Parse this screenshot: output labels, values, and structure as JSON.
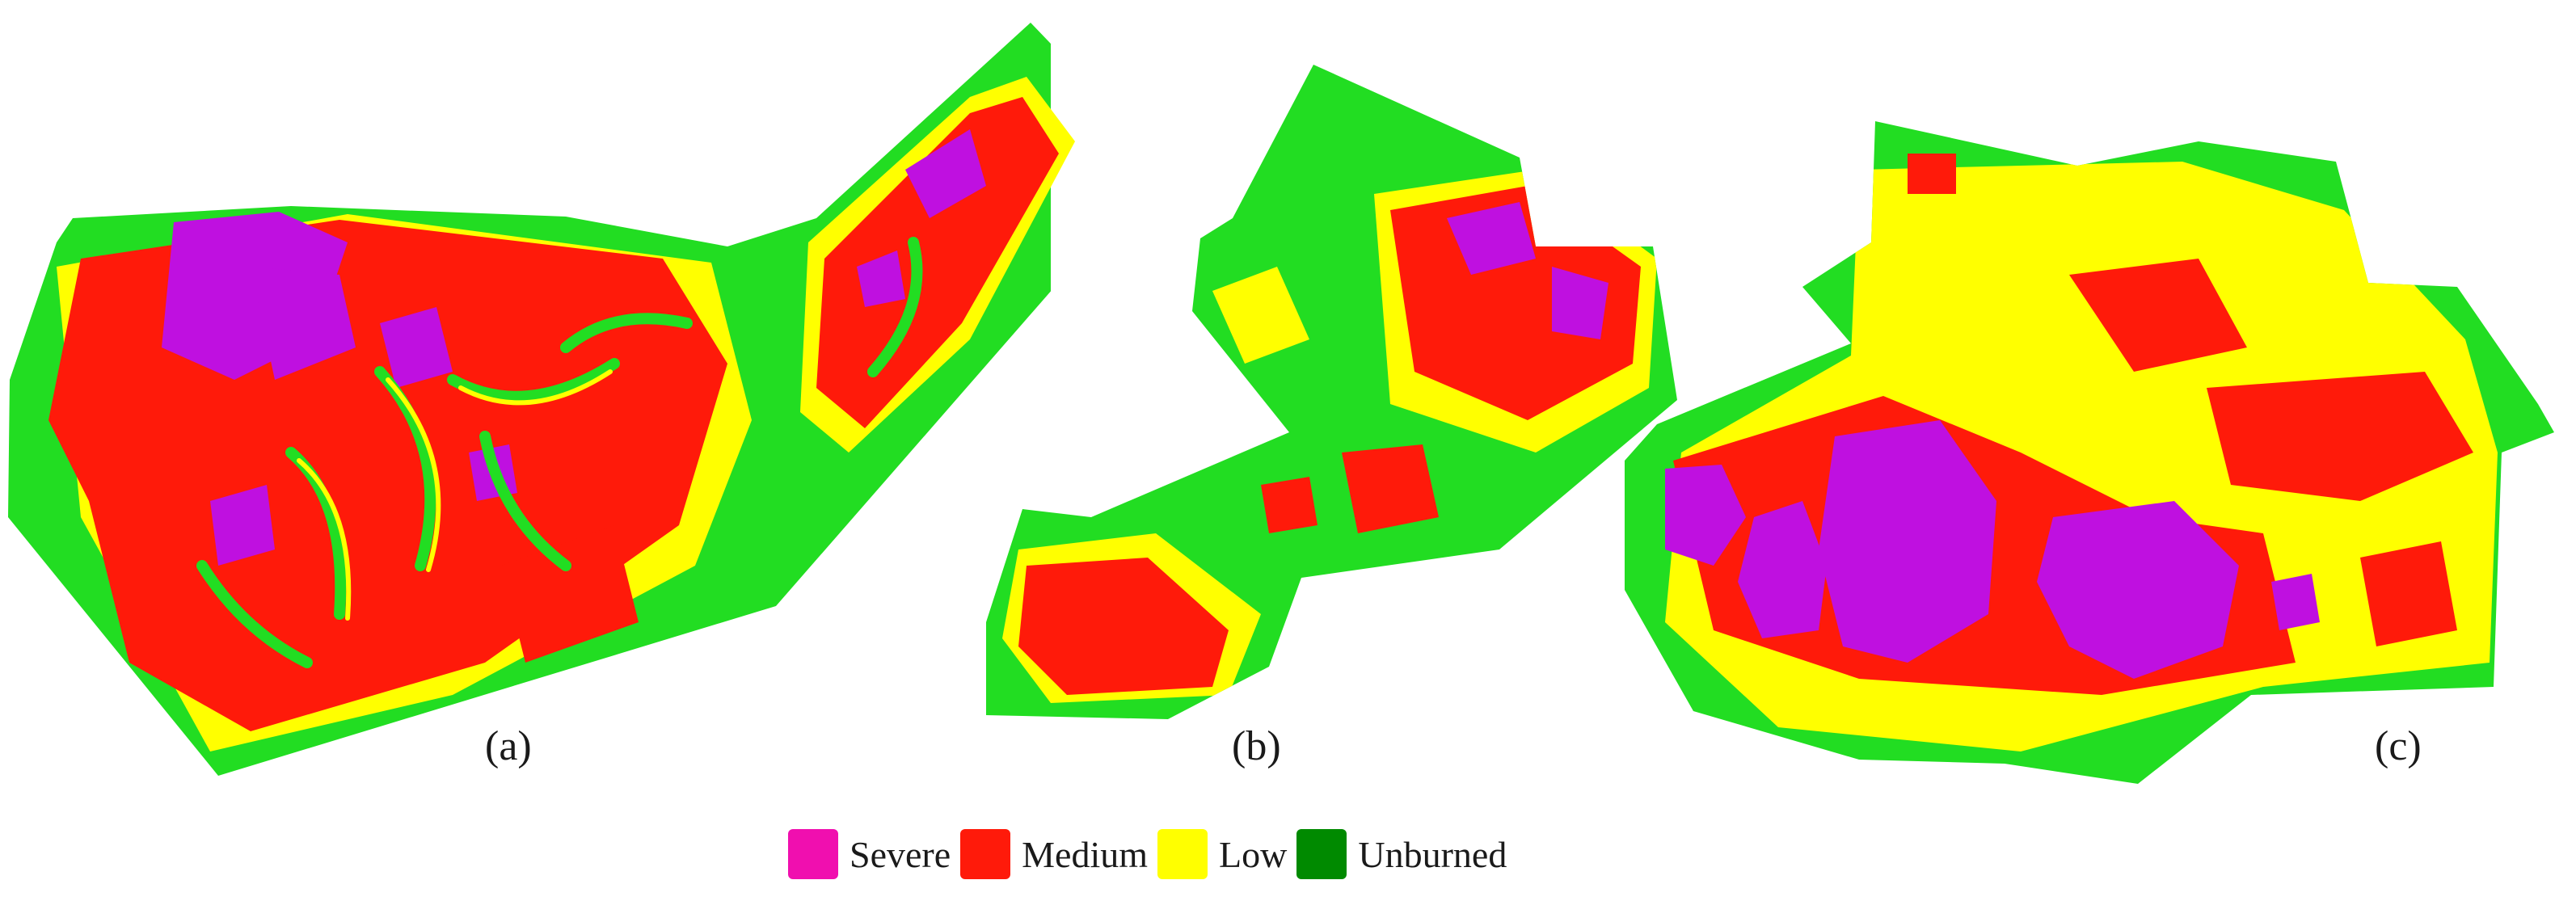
{
  "panels": [
    {
      "label": "(a)"
    },
    {
      "label": "(b)"
    },
    {
      "label": "(c)"
    }
  ],
  "legend": {
    "items": [
      {
        "label": "Severe",
        "color": "#f00faf"
      },
      {
        "label": "Medium",
        "color": "#ff1a0a"
      },
      {
        "label": "Low",
        "color": "#ffff00"
      },
      {
        "label": "Unburned",
        "color": "#008a00"
      }
    ]
  },
  "map_colors": {
    "severe": "#bf10e0",
    "medium": "#ff1a0a",
    "low": "#ffff00",
    "unburned": "#22dd22"
  }
}
